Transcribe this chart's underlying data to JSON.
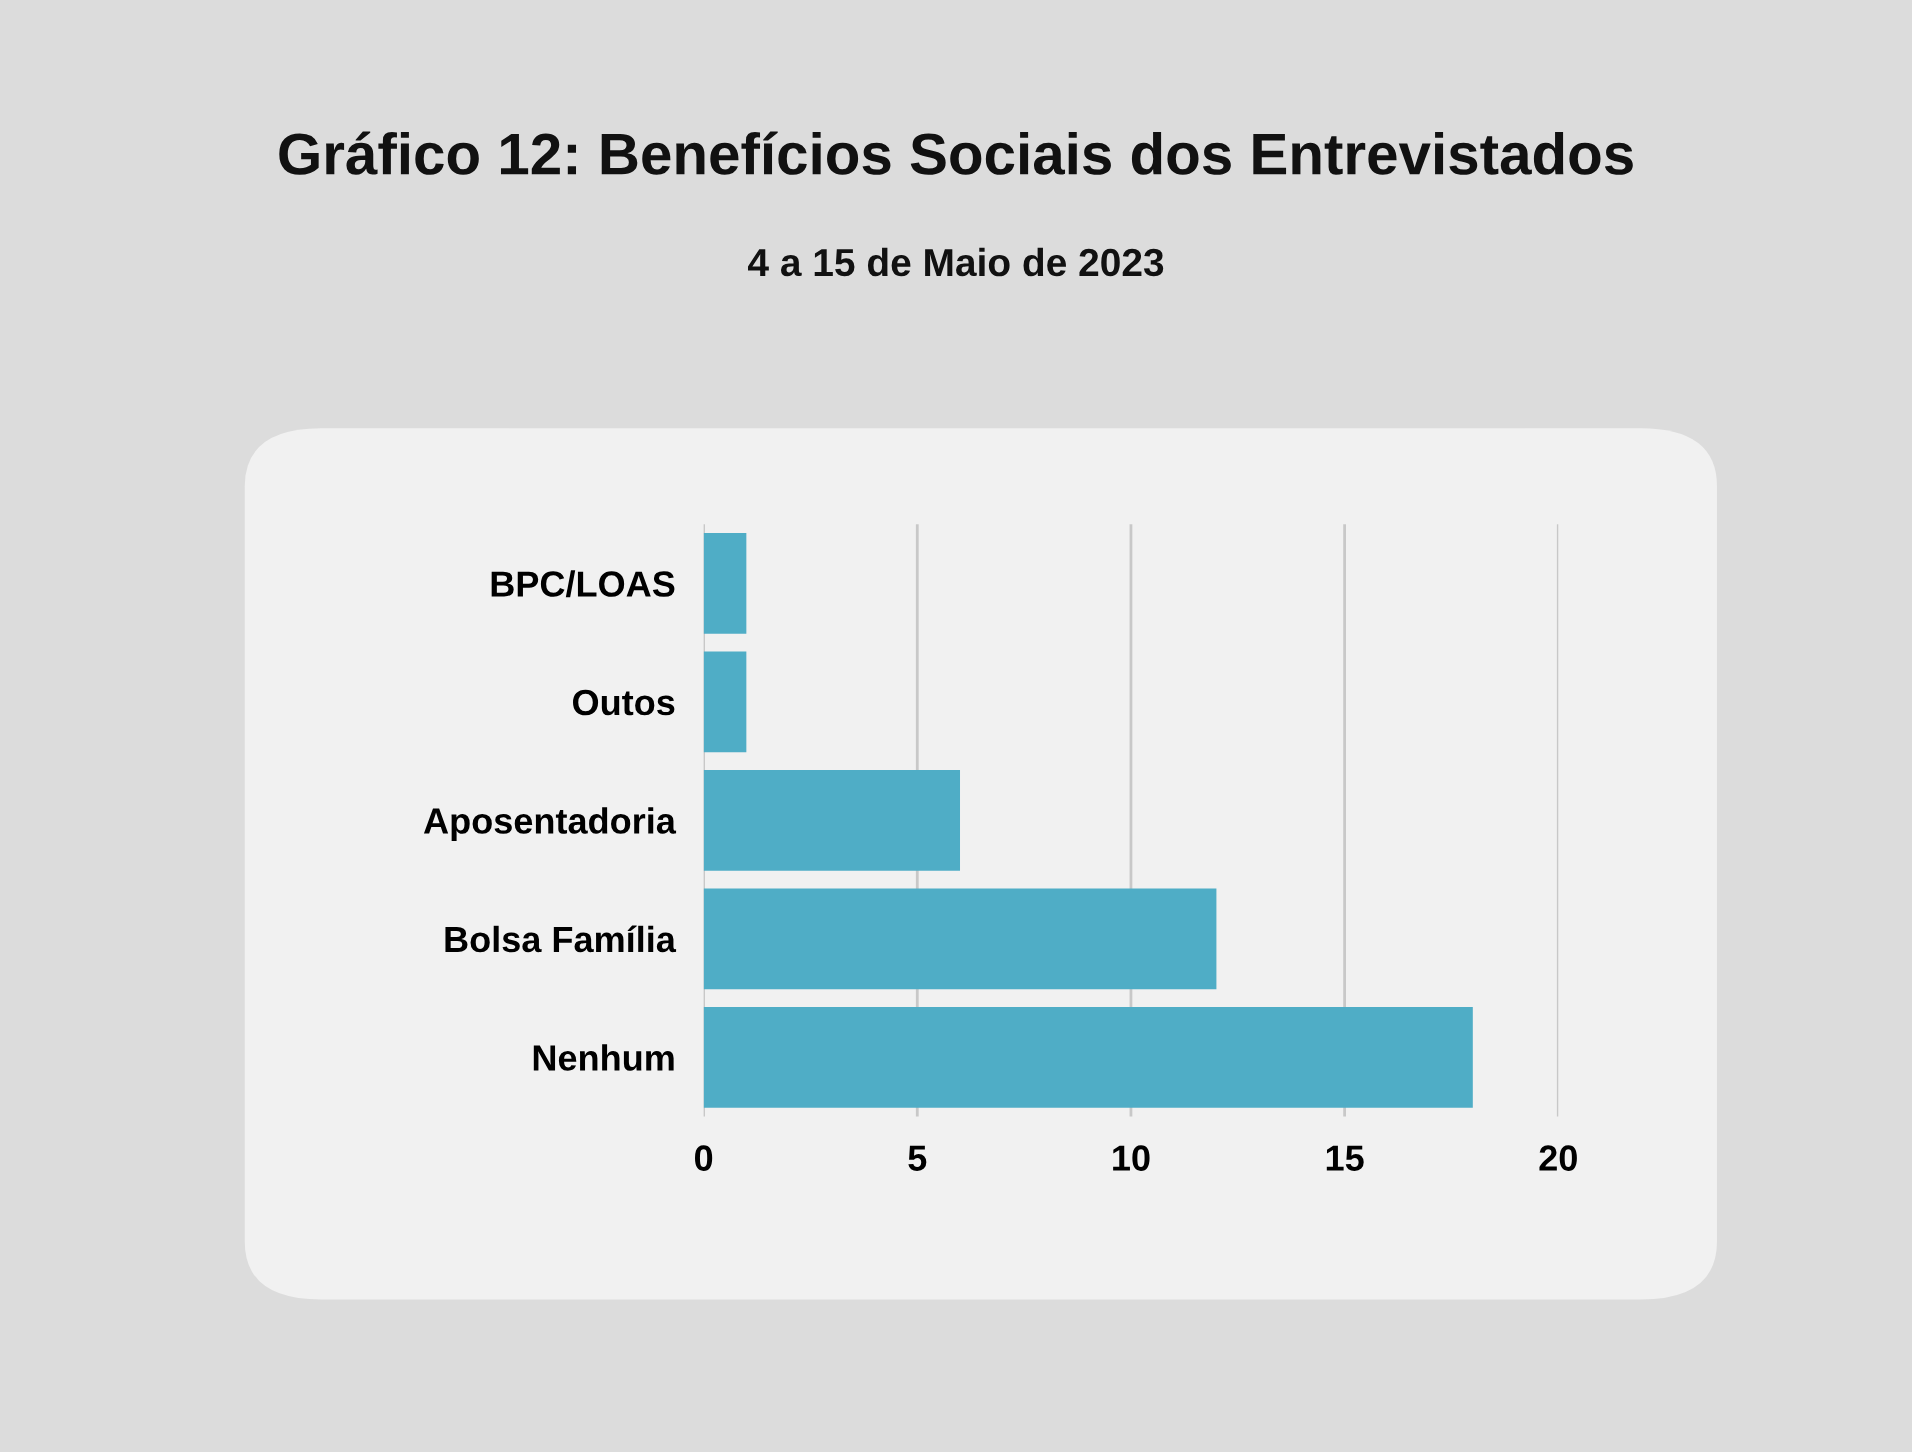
{
  "chart_data": {
    "type": "bar",
    "orientation": "horizontal",
    "title": "Gráfico 12: Benefícios Sociais dos Entrevistados",
    "subtitle": "4 a 15 de Maio de 2023",
    "categories": [
      "BPC/LOAS",
      "Outos",
      "Aposentadoria",
      "Bolsa Família",
      "Nenhum"
    ],
    "values": [
      1,
      1,
      6,
      12,
      18
    ],
    "color": "#4fadc6",
    "xlim": [
      0,
      20
    ],
    "xticks": [
      0,
      5,
      10,
      15,
      20
    ],
    "grid": "x"
  }
}
